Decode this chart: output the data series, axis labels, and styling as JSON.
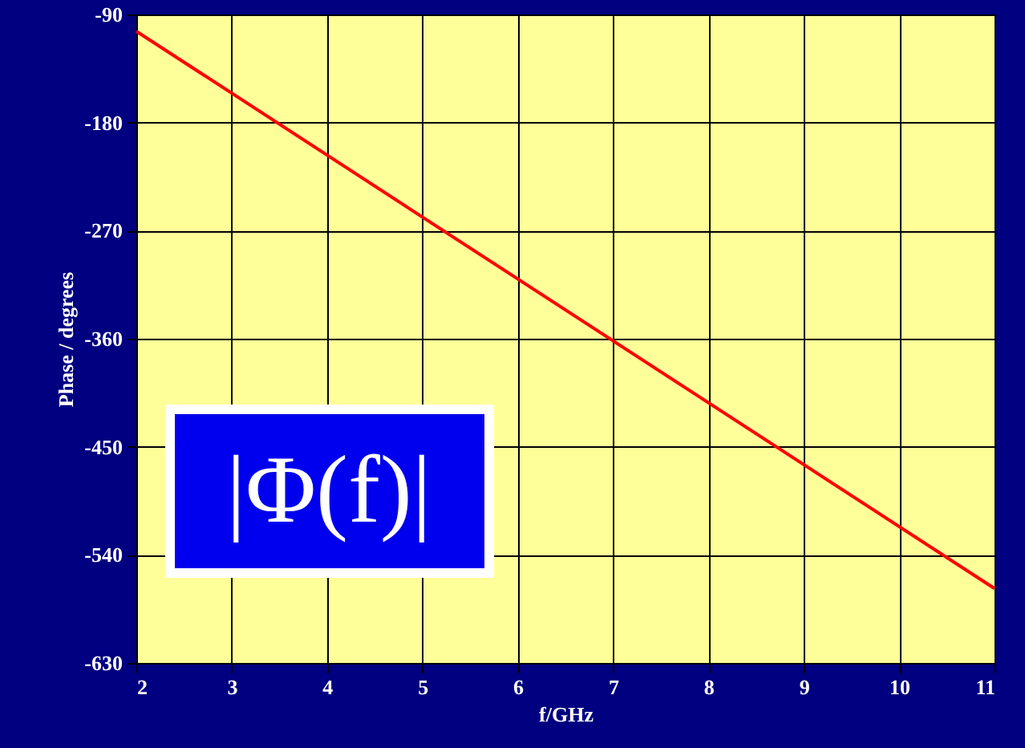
{
  "chart_data": {
    "type": "line",
    "xlabel": "f/GHz",
    "ylabel": "Phase / degrees",
    "x": [
      2,
      11
    ],
    "series": [
      {
        "color": "#ff0000",
        "values": [
          -104,
          -568
        ]
      }
    ],
    "xlim": [
      2,
      11
    ],
    "xticks": [
      2,
      3,
      4,
      5,
      6,
      7,
      8,
      9,
      10,
      11
    ],
    "ylim": [
      -630,
      -90
    ],
    "yticks": [
      -630,
      -540,
      -450,
      -360,
      -270,
      -180,
      -90
    ],
    "grid": true,
    "marker": "none",
    "line_style": "solid",
    "annotations": [
      "|Φ(f)|"
    ]
  }
}
